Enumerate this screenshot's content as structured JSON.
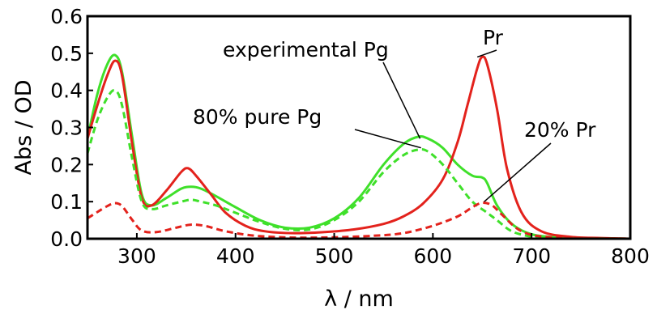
{
  "chart_data": {
    "type": "line",
    "title": "",
    "xlabel": "λ / nm",
    "ylabel": "Abs / OD",
    "xlim": [
      250,
      800
    ],
    "ylim": [
      0.0,
      0.6
    ],
    "x_ticks": [
      "300",
      "400",
      "500",
      "600",
      "700",
      "800"
    ],
    "y_ticks": [
      "0.0",
      "0.1",
      "0.2",
      "0.3",
      "0.4",
      "0.5",
      "0.6"
    ],
    "grid": false,
    "annotations": [
      {
        "text": "experimental Pg",
        "points_to_x": 587,
        "points_to_y": 0.27
      },
      {
        "text": "80% pure Pg",
        "points_to_x": 588,
        "points_to_y": 0.245
      },
      {
        "text": "Pr",
        "points_to_x": 645,
        "points_to_y": 0.49
      },
      {
        "text": "20% Pr",
        "points_to_x": 652,
        "points_to_y": 0.1
      }
    ],
    "series": [
      {
        "name": "Pr",
        "color": "#e3221c",
        "dash": "solid",
        "x": [
          250,
          260,
          270,
          278,
          285,
          295,
          305,
          315,
          330,
          345,
          352,
          360,
          375,
          390,
          410,
          430,
          460,
          490,
          520,
          550,
          570,
          590,
          610,
          625,
          635,
          645,
          650,
          655,
          665,
          675,
          690,
          710,
          740,
          770,
          800
        ],
        "y": [
          0.27,
          0.36,
          0.44,
          0.48,
          0.44,
          0.26,
          0.11,
          0.09,
          0.13,
          0.18,
          0.19,
          0.17,
          0.12,
          0.07,
          0.035,
          0.02,
          0.015,
          0.018,
          0.025,
          0.04,
          0.06,
          0.095,
          0.16,
          0.26,
          0.36,
          0.46,
          0.49,
          0.47,
          0.35,
          0.19,
          0.07,
          0.02,
          0.005,
          0.002,
          0.0
        ]
      },
      {
        "name": "experimental Pg",
        "color": "#3fe02a",
        "dash": "solid",
        "x": [
          250,
          260,
          270,
          278,
          285,
          295,
          305,
          315,
          330,
          345,
          355,
          365,
          380,
          400,
          425,
          450,
          475,
          500,
          525,
          550,
          570,
          585,
          595,
          610,
          625,
          640,
          650,
          655,
          665,
          680,
          700,
          725,
          760,
          800
        ],
        "y": [
          0.27,
          0.39,
          0.47,
          0.495,
          0.45,
          0.28,
          0.12,
          0.09,
          0.11,
          0.135,
          0.14,
          0.135,
          0.115,
          0.085,
          0.05,
          0.03,
          0.03,
          0.055,
          0.11,
          0.2,
          0.255,
          0.275,
          0.27,
          0.245,
          0.2,
          0.17,
          0.165,
          0.15,
          0.09,
          0.04,
          0.012,
          0.004,
          0.001,
          0.0
        ]
      },
      {
        "name": "80% pure Pg",
        "color": "#3fe02a",
        "dash": "dashed",
        "x": [
          250,
          260,
          270,
          278,
          285,
          295,
          305,
          315,
          330,
          345,
          355,
          365,
          380,
          400,
          425,
          450,
          475,
          500,
          525,
          550,
          570,
          585,
          595,
          610,
          625,
          640,
          655,
          665,
          680,
          700,
          725,
          760,
          800
        ],
        "y": [
          0.23,
          0.32,
          0.38,
          0.4,
          0.36,
          0.22,
          0.1,
          0.08,
          0.09,
          0.1,
          0.105,
          0.1,
          0.09,
          0.07,
          0.045,
          0.027,
          0.025,
          0.05,
          0.1,
          0.18,
          0.225,
          0.24,
          0.235,
          0.2,
          0.15,
          0.1,
          0.07,
          0.05,
          0.02,
          0.006,
          0.002,
          0.001,
          0.0
        ]
      },
      {
        "name": "20% Pr",
        "color": "#e3221c",
        "dash": "dashed",
        "x": [
          250,
          260,
          270,
          278,
          285,
          295,
          305,
          320,
          340,
          355,
          370,
          390,
          420,
          460,
          500,
          540,
          570,
          600,
          625,
          640,
          650,
          660,
          670,
          690,
          720,
          800
        ],
        "y": [
          0.055,
          0.072,
          0.088,
          0.096,
          0.088,
          0.052,
          0.022,
          0.018,
          0.03,
          0.038,
          0.034,
          0.02,
          0.008,
          0.003,
          0.004,
          0.008,
          0.015,
          0.035,
          0.06,
          0.085,
          0.097,
          0.09,
          0.065,
          0.02,
          0.004,
          0.0
        ]
      }
    ]
  }
}
